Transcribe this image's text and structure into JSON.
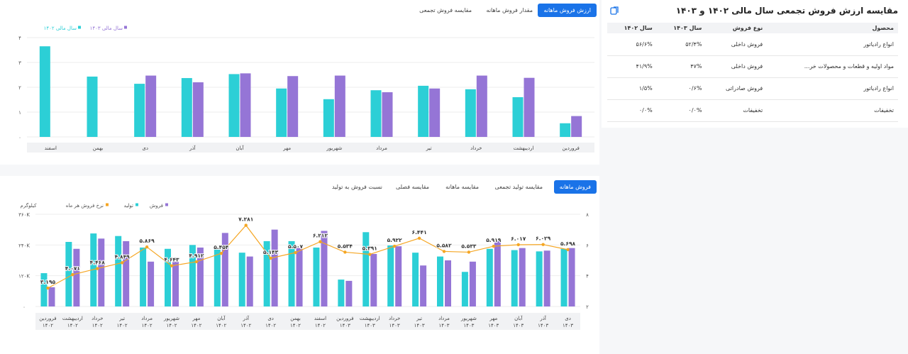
{
  "panel_left": {
    "title": "مقایسه ارزش فروش تجمعی سال مالی ۱۴۰۲ و ۱۴۰۳",
    "headers": [
      "محصول",
      "نوع فروش",
      "سال ۱۴۰۳",
      "سال ۱۴۰۲"
    ],
    "rows": [
      [
        "انواع رادیاتور",
        "فروش داخلی",
        "۵۲/۴%",
        "۵۶/۶%"
      ],
      [
        "مواد اولیه و قطعات و محصولات خر...",
        "فروش داخلی",
        "۴۷%",
        "۴۱/۹%"
      ],
      [
        "انواع رادیاتور",
        "فروش صادراتی",
        "۰/۶%",
        "۱/۵%"
      ],
      [
        "تخفیفات",
        "تخفیفات",
        "۰/۰%",
        "۰/۰%"
      ]
    ]
  },
  "panel_top": {
    "tabs": [
      "ارزش فروش ماهانه",
      "مقدار فروش ماهانه",
      "مقایسه فروش تجمعی"
    ],
    "active_tab": 0,
    "legend": [
      "سال مالی ۱۴۰۲",
      "سال مالی ۱۴۰۳"
    ]
  },
  "panel_bottom": {
    "tabs": [
      "فروش ماهانه",
      "مقایسه تولید تجمعی",
      "مقایسه ماهانه",
      "مقایسه فصلی",
      "نسبت فروش به تولید"
    ],
    "active_tab": 0,
    "legend": [
      "فروش",
      "تولید",
      "نرخ فروش هر ماه"
    ],
    "unit": "کیلوگرم"
  },
  "colors": {
    "cyan": "#2ccfd6",
    "purple": "#9575d6",
    "orange": "#f5a623",
    "accent": "#1a73e8"
  },
  "chart_data": [
    {
      "type": "bar",
      "categories": [
        "فروردین",
        "اردیبهشت",
        "خرداد",
        "تیر",
        "مرداد",
        "شهریور",
        "مهر",
        "آبان",
        "آذر",
        "دی",
        "بهمن",
        "اسفند"
      ],
      "yticks": [
        "۰",
        "۱",
        "۲",
        "۳",
        "۴"
      ],
      "ylim": [
        0,
        4
      ],
      "series": [
        {
          "name": "سال مالی ۱۴۰۲",
          "color": "#2ccfd6",
          "values": [
            0.55,
            1.6,
            1.92,
            2.06,
            1.88,
            1.52,
            1.95,
            2.53,
            2.37,
            2.14,
            2.43,
            3.65
          ]
        },
        {
          "name": "سال مالی ۱۴۰۳",
          "color": "#9575d6",
          "values": [
            0.84,
            2.38,
            2.47,
            1.95,
            1.8,
            2.47,
            2.45,
            2.56,
            2.2,
            2.47,
            null,
            null
          ]
        }
      ]
    },
    {
      "type": "bar",
      "categories": [
        [
          "فروردین",
          "۱۴۰۲"
        ],
        [
          "اردیبهشت",
          "۱۴۰۲"
        ],
        [
          "خرداد",
          "۱۴۰۲"
        ],
        [
          "تیر",
          "۱۴۰۲"
        ],
        [
          "مرداد",
          "۱۴۰۲"
        ],
        [
          "شهریور",
          "۱۴۰۲"
        ],
        [
          "مهر",
          "۱۴۰۲"
        ],
        [
          "آبان",
          "۱۴۰۲"
        ],
        [
          "آذر",
          "۱۴۰۲"
        ],
        [
          "دی",
          "۱۴۰۲"
        ],
        [
          "بهمن",
          "۱۴۰۲"
        ],
        [
          "اسفند",
          "۱۴۰۲"
        ],
        [
          "فروردین",
          "۱۴۰۳"
        ],
        [
          "اردیبهشت",
          "۱۴۰۳"
        ],
        [
          "خرداد",
          "۱۴۰۳"
        ],
        [
          "تیر",
          "۱۴۰۳"
        ],
        [
          "مرداد",
          "۱۴۰۳"
        ],
        [
          "شهریور",
          "۱۴۰۳"
        ],
        [
          "مهر",
          "۱۴۰۳"
        ],
        [
          "آبان",
          "۱۴۰۳"
        ],
        [
          "آذر",
          "۱۴۰۳"
        ],
        [
          "دی",
          "۱۴۰۳"
        ]
      ],
      "yticks_left": [
        "۰",
        "۱۲۰K",
        "۲۴۰K",
        "۳۶۰K"
      ],
      "ylim_left": [
        0,
        360000
      ],
      "yticks_right": [
        "۲",
        "۴",
        "۶",
        "۸"
      ],
      "ylim_right": [
        2,
        8
      ],
      "series": [
        {
          "name": "تولید",
          "color": "#2ccfd6",
          "values": [
            130000,
            252000,
            285000,
            275000,
            230000,
            225000,
            240000,
            225000,
            210000,
            255000,
            255000,
            230000,
            105000,
            290000,
            238000,
            210000,
            195000,
            135000,
            225000,
            220000,
            215000,
            225000
          ]
        },
        {
          "name": "فروش",
          "color": "#9575d6",
          "values": [
            75000,
            225000,
            265000,
            255000,
            175000,
            175000,
            230000,
            287000,
            195000,
            300000,
            228000,
            295000,
            100000,
            205000,
            235000,
            160000,
            180000,
            175000,
            255000,
            228000,
            218000,
            228000
          ]
        },
        {
          "name": "نرخ فروش هر ماه",
          "color": "#f5a623",
          "values": [
            3.195,
            4.071,
            4.468,
            4.849,
            5.869,
            4.643,
            4.912,
            5.454,
            7.281,
            5.143,
            5.507,
            6.212,
            5.534,
            5.391,
            5.922,
            6.441,
            5.582,
            5.533,
            5.919,
            6.017,
            6.029,
            5.698
          ],
          "labels": [
            "۳.۱۹۵",
            "۴.۰۷۱",
            "۴.۴۶۸",
            "۴.۸۴۹",
            "۵.۸۶۹",
            "۴.۶۴۳",
            "۴.۹۱۲",
            "۵.۴۵۴",
            "۷.۲۸۱",
            "۵.۱۴۳",
            "۵.۵۰۷",
            "۶.۲۱۲",
            "۵.۵۳۴",
            "۵.۳۹۱",
            "۵.۹۲۲",
            "۶.۴۴۱",
            "۵.۵۸۲",
            "۵.۵۳۳",
            "۵.۹۱۹",
            "۶.۰۱۷",
            "۶.۰۲۹",
            "۵.۶۹۸"
          ]
        }
      ]
    }
  ]
}
